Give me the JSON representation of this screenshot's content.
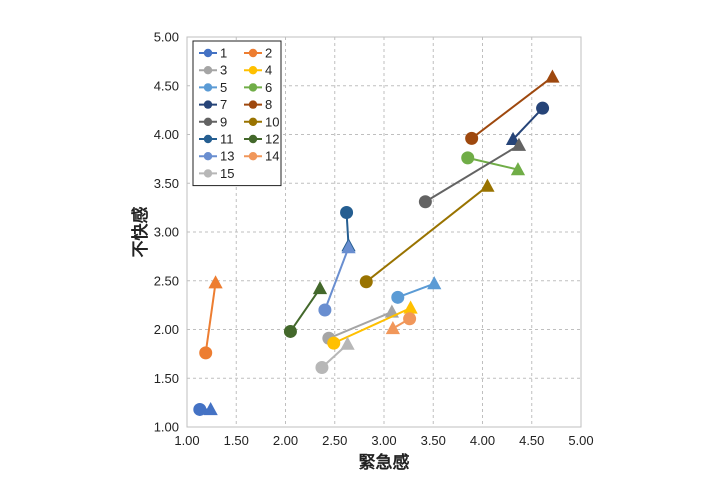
{
  "chart_data": {
    "type": "scatter",
    "xlabel": "緊急感",
    "ylabel": "不快感",
    "xlim": [
      1.0,
      5.0
    ],
    "ylim": [
      1.0,
      5.0
    ],
    "x_ticks": [
      "1.00",
      "1.50",
      "2.00",
      "2.50",
      "3.00",
      "3.50",
      "4.00",
      "4.50",
      "5.00"
    ],
    "y_ticks": [
      "1.00",
      "1.50",
      "2.00",
      "2.50",
      "3.00",
      "3.50",
      "4.00",
      "4.50",
      "5.00"
    ],
    "grid": "dashed",
    "legend_position": "top-left",
    "marker_start": "circle",
    "marker_end": "triangle",
    "series": [
      {
        "name": "1",
        "color": "#4472C4",
        "start": [
          1.13,
          1.18
        ],
        "end": [
          1.24,
          1.18
        ]
      },
      {
        "name": "2",
        "color": "#ED7D31",
        "start": [
          1.19,
          1.76
        ],
        "end": [
          1.29,
          2.48
        ]
      },
      {
        "name": "3",
        "color": "#A5A5A5",
        "start": [
          2.44,
          1.91
        ],
        "end": [
          3.08,
          2.18
        ]
      },
      {
        "name": "4",
        "color": "#FFC000",
        "start": [
          2.49,
          1.86
        ],
        "end": [
          3.27,
          2.22
        ]
      },
      {
        "name": "5",
        "color": "#5B9BD5",
        "start": [
          3.14,
          2.33
        ],
        "end": [
          3.51,
          2.47
        ]
      },
      {
        "name": "6",
        "color": "#70AD47",
        "start": [
          3.85,
          3.76
        ],
        "end": [
          4.36,
          3.64
        ]
      },
      {
        "name": "7",
        "color": "#264478",
        "start": [
          4.61,
          4.27
        ],
        "end": [
          4.31,
          3.95
        ]
      },
      {
        "name": "8",
        "color": "#9E480E",
        "start": [
          3.89,
          3.96
        ],
        "end": [
          4.71,
          4.59
        ]
      },
      {
        "name": "9",
        "color": "#636363",
        "start": [
          3.42,
          3.31
        ],
        "end": [
          4.37,
          3.89
        ]
      },
      {
        "name": "10",
        "color": "#997300",
        "start": [
          2.82,
          2.49
        ],
        "end": [
          4.05,
          3.47
        ]
      },
      {
        "name": "11",
        "color": "#255E91",
        "start": [
          2.62,
          3.2
        ],
        "end": [
          2.64,
          2.86
        ]
      },
      {
        "name": "12",
        "color": "#43682B",
        "start": [
          2.05,
          1.98
        ],
        "end": [
          2.35,
          2.42
        ]
      },
      {
        "name": "13",
        "color": "#698ED0",
        "start": [
          2.4,
          2.2
        ],
        "end": [
          2.64,
          2.84
        ]
      },
      {
        "name": "14",
        "color": "#F1975A",
        "start": [
          3.26,
          2.11
        ],
        "end": [
          3.09,
          2.01
        ]
      },
      {
        "name": "15",
        "color": "#B7B7B7",
        "start": [
          2.37,
          1.61
        ],
        "end": [
          2.63,
          1.85
        ]
      }
    ]
  }
}
